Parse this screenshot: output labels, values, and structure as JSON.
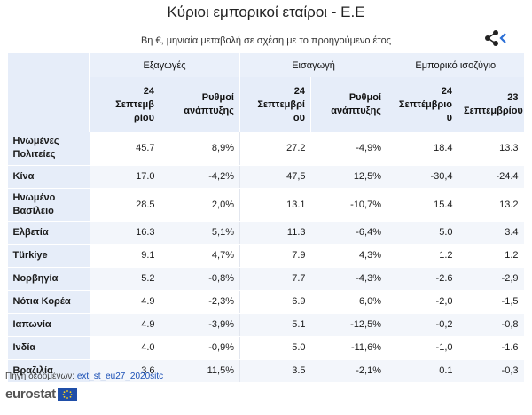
{
  "title": "Κύριοι εμπορικοί εταίροι - Ε.Ε",
  "subtitle": "Βη €, μηνιαία μεταβολή σε σχέση με το προηγούμενο έτος",
  "share_icon": "share-icon",
  "groups": {
    "exports": "Εξαγωγές",
    "imports": "Εισαγωγή",
    "balance": "Εμπορικό ισοζύγιο"
  },
  "columns": {
    "exp_value": "24\nΣεπτεμβ\nρίου",
    "exp_growth": "Ρυθμοί\nανάπτυξης",
    "imp_value": "24\nΣεπτεμβρί\nου",
    "imp_growth": "Ρυθμοί\nανάπτυξης",
    "bal_24": "24\nΣεπτέμβριο\nυ",
    "bal_23": "23\nΣεπτεμβρίου"
  },
  "rows": [
    {
      "country": "Ηνωμένες\nΠολιτείες",
      "exp": "45.7",
      "exp_g": "8,9%",
      "imp": "27.2",
      "imp_g": "-4,9%",
      "bal24": "18.4",
      "bal23": "13.3"
    },
    {
      "country": "Κίνα",
      "exp": "17.0",
      "exp_g": "-4,2%",
      "imp": "47,5",
      "imp_g": "12,5%",
      "bal24": "-30,4",
      "bal23": "-24.4"
    },
    {
      "country": "Ηνωμένο\nΒασίλειο",
      "exp": "28.5",
      "exp_g": "2,0%",
      "imp": "13.1",
      "imp_g": "-10,7%",
      "bal24": "15.4",
      "bal23": "13.2"
    },
    {
      "country": "Ελβετία",
      "exp": "16.3",
      "exp_g": "5,1%",
      "imp": "11.3",
      "imp_g": "-6,4%",
      "bal24": "5.0",
      "bal23": "3.4"
    },
    {
      "country": "Türkiye",
      "exp": "9.1",
      "exp_g": "4,7%",
      "imp": "7.9",
      "imp_g": "4,3%",
      "bal24": "1.2",
      "bal23": "1.2"
    },
    {
      "country": "Νορβηγία",
      "exp": "5.2",
      "exp_g": "-0,8%",
      "imp": "7.7",
      "imp_g": "-4,3%",
      "bal24": "-2.6",
      "bal23": "-2,9"
    },
    {
      "country": "Νότια Κορέα",
      "exp": "4.9",
      "exp_g": "-2,3%",
      "imp": "6.9",
      "imp_g": "6,0%",
      "bal24": "-2,0",
      "bal23": "-1,5"
    },
    {
      "country": "Ιαπωνία",
      "exp": "4.9",
      "exp_g": "-3,9%",
      "imp": "5.1",
      "imp_g": "-12,5%",
      "bal24": "-0,2",
      "bal23": "-0,8"
    },
    {
      "country": "Ινδία",
      "exp": "4.0",
      "exp_g": "-0,9%",
      "imp": "5.0",
      "imp_g": "-11,6%",
      "bal24": "-1,0",
      "bal23": "-1.6"
    },
    {
      "country": "Βραζιλία",
      "exp": "3.6",
      "exp_g": "11,5%",
      "imp": "3.5",
      "imp_g": "-2,1%",
      "bal24": "0.1",
      "bal23": "-0,3"
    }
  ],
  "source_label": "Πηγή δεδομένων:",
  "source_link": "ext_st_eu27_2020sitc",
  "logo_text": "eurostat",
  "colors": {
    "header_bg": "#e6edf9",
    "stripe": "#f3f6fb",
    "link": "#1a4fb5",
    "logo_flag": "#1f4ea8"
  }
}
